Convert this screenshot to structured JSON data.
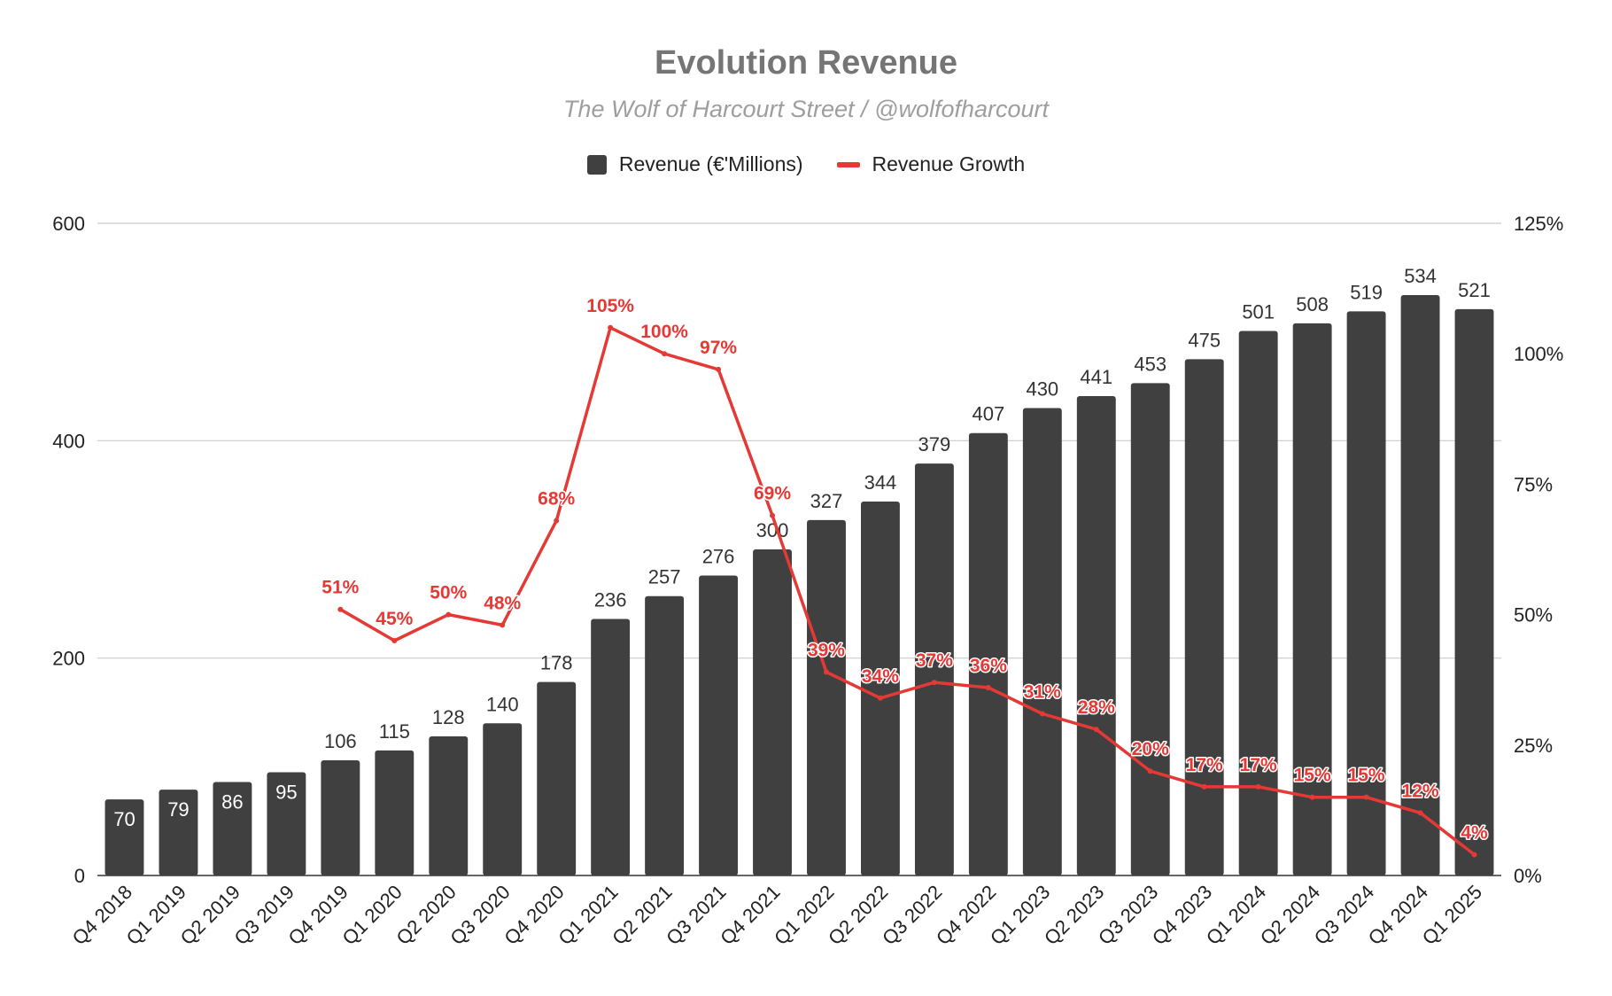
{
  "chart_data": {
    "type": "bar",
    "title": "Evolution Revenue",
    "subtitle": "The Wolf of Harcourt Street / @wolfofharcourt",
    "categories": [
      "Q4 2018",
      "Q1 2019",
      "Q2 2019",
      "Q3 2019",
      "Q4 2019",
      "Q1 2020",
      "Q2 2020",
      "Q3 2020",
      "Q4 2020",
      "Q1 2021",
      "Q2 2021",
      "Q3 2021",
      "Q4 2021",
      "Q1 2022",
      "Q2 2022",
      "Q3 2022",
      "Q4 2022",
      "Q1 2023",
      "Q2 2023",
      "Q3 2023",
      "Q4 2023",
      "Q1 2024",
      "Q2 2024",
      "Q3 2024",
      "Q4 2024",
      "Q1 2025"
    ],
    "series": [
      {
        "name": "Revenue (€'Millions)",
        "type": "bar",
        "axis": "left",
        "color": "#404040",
        "values": [
          70,
          79,
          86,
          95,
          106,
          115,
          128,
          140,
          178,
          236,
          257,
          276,
          300,
          327,
          344,
          379,
          407,
          430,
          441,
          453,
          475,
          501,
          508,
          519,
          534,
          521
        ]
      },
      {
        "name": "Revenue Growth",
        "type": "line",
        "axis": "right",
        "color": "#e53935",
        "values": [
          null,
          null,
          null,
          null,
          51,
          45,
          50,
          48,
          68,
          105,
          100,
          97,
          69,
          39,
          34,
          37,
          36,
          31,
          28,
          20,
          17,
          17,
          15,
          15,
          12,
          4
        ],
        "labels": [
          null,
          null,
          null,
          null,
          "51%",
          "45%",
          "50%",
          "48%",
          "68%",
          "105%",
          "100%",
          "97%",
          "69%",
          "39%",
          "34%",
          "37%",
          "36%",
          "31%",
          "28%",
          "20%",
          "17%",
          "17%",
          "15%",
          "15%",
          "12%",
          "4%"
        ]
      }
    ],
    "y_left": {
      "range": [
        0,
        600
      ],
      "ticks": [
        0,
        200,
        400,
        600
      ]
    },
    "y_right": {
      "range": [
        0,
        125
      ],
      "ticks": [
        0,
        25,
        50,
        75,
        100,
        125
      ],
      "tick_labels": [
        "0%",
        "25%",
        "50%",
        "75%",
        "100%",
        "125%"
      ]
    },
    "grid": true,
    "legend": "top"
  }
}
